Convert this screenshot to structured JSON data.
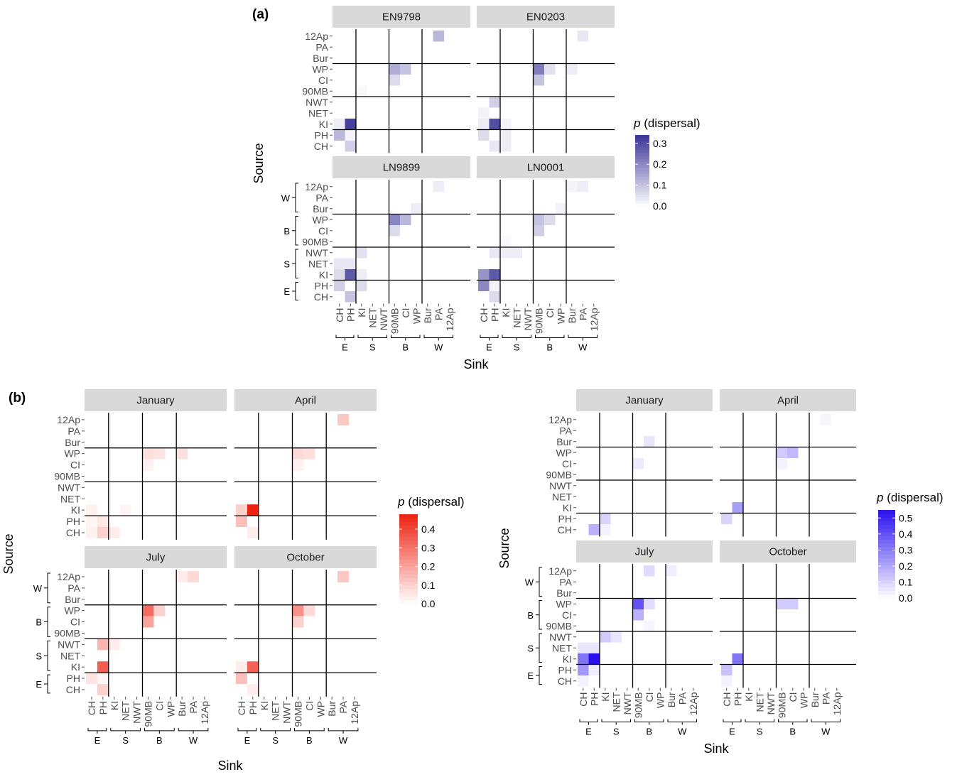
{
  "panel_labels": {
    "a": "(a)",
    "b": "(b)"
  },
  "axis_titles": {
    "x": "Sink",
    "y": "Source"
  },
  "legend_titles": {
    "italic": "p",
    "rest": " (dispersal)"
  },
  "source_labels": [
    "12Ap",
    "PA",
    "Bur",
    "WP",
    "CI",
    "90MB",
    "NWT",
    "NET",
    "KI",
    "PH",
    "CH"
  ],
  "sink_labels": [
    "CH",
    "PH",
    "KI",
    "NET",
    "NWT",
    "90MB",
    "CI",
    "WP",
    "Bur",
    "PA",
    "12Ap"
  ],
  "groups": [
    "E",
    "S",
    "B",
    "W"
  ],
  "colors": {
    "blue_a": "#3a3596",
    "red": "#ee2211",
    "violet": "#2a10ee",
    "strip": "#d9d9d9",
    "grid": "#000000"
  },
  "chart_data": [
    {
      "type": "heatmap",
      "id": "a",
      "title": "(a)",
      "xlabel": "Sink",
      "ylabel": "Source",
      "legend": {
        "title": "p (dispersal)",
        "max": 0.34,
        "ticks": [
          0.0,
          0.1,
          0.2,
          0.3
        ],
        "color": "#3a3596",
        "placement": "right"
      },
      "panels": [
        {
          "name": "EN9798",
          "cells": [
            [
              "12Ap",
              "PA",
              0.12
            ],
            [
              "WP",
              "90MB",
              0.14
            ],
            [
              "WP",
              "CI",
              0.1
            ],
            [
              "CI",
              "90MB",
              0.06
            ],
            [
              "90MB",
              "KI",
              0.01
            ],
            [
              "KI",
              "CH",
              0.03
            ],
            [
              "KI",
              "PH",
              0.32
            ],
            [
              "PH",
              "CH",
              0.12
            ],
            [
              "PH",
              "PH",
              0.02
            ],
            [
              "CH",
              "PH",
              0.08
            ]
          ]
        },
        {
          "name": "EN0203",
          "cells": [
            [
              "12Ap",
              "PA",
              0.04
            ],
            [
              "WP",
              "90MB",
              0.22
            ],
            [
              "WP",
              "CI",
              0.05
            ],
            [
              "WP",
              "Bur",
              0.03
            ],
            [
              "CI",
              "90MB",
              0.1
            ],
            [
              "NWT",
              "PH",
              0.08
            ],
            [
              "NET",
              "CH",
              0.02
            ],
            [
              "KI",
              "CH",
              0.03
            ],
            [
              "KI",
              "PH",
              0.3
            ],
            [
              "KI",
              "KI",
              0.02
            ],
            [
              "PH",
              "CH",
              0.06
            ],
            [
              "PH",
              "KI",
              0.03
            ],
            [
              "CH",
              "PH",
              0.04
            ],
            [
              "CH",
              "KI",
              0.03
            ]
          ]
        },
        {
          "name": "LN9899",
          "cells": [
            [
              "12Ap",
              "PA",
              0.03
            ],
            [
              "Bur",
              "WP",
              0.03
            ],
            [
              "WP",
              "90MB",
              0.2
            ],
            [
              "WP",
              "CI",
              0.12
            ],
            [
              "CI",
              "90MB",
              0.06
            ],
            [
              "NWT",
              "KI",
              0.05
            ],
            [
              "NET",
              "CH",
              0.04
            ],
            [
              "NET",
              "PH",
              0.04
            ],
            [
              "KI",
              "CH",
              0.06
            ],
            [
              "KI",
              "PH",
              0.28
            ],
            [
              "KI",
              "KI",
              0.03
            ],
            [
              "PH",
              "CH",
              0.08
            ],
            [
              "PH",
              "KI",
              0.06
            ],
            [
              "CH",
              "PH",
              0.1
            ]
          ]
        },
        {
          "name": "LN0001",
          "cells": [
            [
              "12Ap",
              "Bur",
              0.02
            ],
            [
              "12Ap",
              "PA",
              0.03
            ],
            [
              "Bur",
              "WP",
              0.02
            ],
            [
              "WP",
              "90MB",
              0.1
            ],
            [
              "WP",
              "CI",
              0.06
            ],
            [
              "CI",
              "90MB",
              0.08
            ],
            [
              "90MB",
              "KI",
              0.01
            ],
            [
              "NWT",
              "PH",
              0.04
            ],
            [
              "NWT",
              "KI",
              0.03
            ],
            [
              "NWT",
              "NET",
              0.03
            ],
            [
              "KI",
              "CH",
              0.18
            ],
            [
              "KI",
              "PH",
              0.28
            ],
            [
              "PH",
              "CH",
              0.2
            ],
            [
              "PH",
              "PH",
              0.02
            ],
            [
              "CH",
              "PH",
              0.06
            ]
          ]
        }
      ]
    },
    {
      "type": "heatmap",
      "id": "b-red",
      "title": "(b)",
      "xlabel": "Sink",
      "ylabel": "Source",
      "legend": {
        "title": "p (dispersal)",
        "max": 0.48,
        "ticks": [
          0.0,
          0.1,
          0.2,
          0.3,
          0.4
        ],
        "color": "#ee2211",
        "placement": "right"
      },
      "panels": [
        {
          "name": "January",
          "cells": [
            [
              "WP",
              "90MB",
              0.07
            ],
            [
              "WP",
              "CI",
              0.06
            ],
            [
              "WP",
              "Bur",
              0.07
            ],
            [
              "CI",
              "90MB",
              0.03
            ],
            [
              "KI",
              "CH",
              0.03
            ],
            [
              "KI",
              "NET",
              0.02
            ],
            [
              "PH",
              "CH",
              0.02
            ],
            [
              "PH",
              "PH",
              0.05
            ],
            [
              "CH",
              "PH",
              0.1
            ],
            [
              "CH",
              "KI",
              0.04
            ],
            [
              "CH",
              "CH",
              0.03
            ]
          ]
        },
        {
          "name": "April",
          "cells": [
            [
              "12Ap",
              "PA",
              0.12
            ],
            [
              "WP",
              "90MB",
              0.08
            ],
            [
              "WP",
              "CI",
              0.07
            ],
            [
              "CI",
              "90MB",
              0.03
            ],
            [
              "KI",
              "CH",
              0.1
            ],
            [
              "KI",
              "PH",
              0.48
            ],
            [
              "PH",
              "CH",
              0.14
            ],
            [
              "CH",
              "PH",
              0.04
            ]
          ]
        },
        {
          "name": "July",
          "cells": [
            [
              "12Ap",
              "Bur",
              0.04
            ],
            [
              "12Ap",
              "PA",
              0.08
            ],
            [
              "WP",
              "90MB",
              0.32
            ],
            [
              "WP",
              "CI",
              0.1
            ],
            [
              "CI",
              "90MB",
              0.2
            ],
            [
              "NWT",
              "PH",
              0.16
            ],
            [
              "NWT",
              "KI",
              0.04
            ],
            [
              "KI",
              "PH",
              0.35
            ],
            [
              "PH",
              "CH",
              0.06
            ],
            [
              "PH",
              "PH",
              0.02
            ],
            [
              "CH",
              "PH",
              0.1
            ]
          ]
        },
        {
          "name": "October",
          "cells": [
            [
              "12Ap",
              "PA",
              0.12
            ],
            [
              "WP",
              "90MB",
              0.24
            ],
            [
              "WP",
              "CI",
              0.08
            ],
            [
              "CI",
              "90MB",
              0.1
            ],
            [
              "KI",
              "CH",
              0.04
            ],
            [
              "KI",
              "PH",
              0.34
            ],
            [
              "PH",
              "CH",
              0.14
            ],
            [
              "CH",
              "PH",
              0.04
            ]
          ]
        }
      ]
    },
    {
      "type": "heatmap",
      "id": "b-violet",
      "xlabel": "Sink",
      "ylabel": "Source",
      "legend": {
        "title": "p (dispersal)",
        "max": 0.55,
        "ticks": [
          0.0,
          0.1,
          0.2,
          0.3,
          0.4,
          0.5
        ],
        "color": "#2a10ee",
        "placement": "right"
      },
      "panels": [
        {
          "name": "January",
          "cells": [
            [
              "Bur",
              "CI",
              0.06
            ],
            [
              "CI",
              "90MB",
              0.05
            ],
            [
              "PH",
              "KI",
              0.1
            ],
            [
              "CH",
              "PH",
              0.18
            ],
            [
              "CH",
              "KI",
              0.03
            ]
          ]
        },
        {
          "name": "April",
          "cells": [
            [
              "12Ap",
              "PA",
              0.02
            ],
            [
              "WP",
              "90MB",
              0.12
            ],
            [
              "WP",
              "CI",
              0.16
            ],
            [
              "CI",
              "90MB",
              0.03
            ],
            [
              "KI",
              "PH",
              0.22
            ],
            [
              "PH",
              "CH",
              0.1
            ]
          ]
        },
        {
          "name": "July",
          "cells": [
            [
              "12Ap",
              "Bur",
              0.04
            ],
            [
              "12Ap",
              "CI",
              0.08
            ],
            [
              "WP",
              "90MB",
              0.4
            ],
            [
              "WP",
              "CI",
              0.08
            ],
            [
              "CI",
              "90MB",
              0.18
            ],
            [
              "90MB",
              "CI",
              0.02
            ],
            [
              "NWT",
              "KI",
              0.12
            ],
            [
              "NWT",
              "NET",
              0.06
            ],
            [
              "NET",
              "CH",
              0.06
            ],
            [
              "NET",
              "PH",
              0.06
            ],
            [
              "KI",
              "CH",
              0.32
            ],
            [
              "KI",
              "PH",
              0.56
            ],
            [
              "PH",
              "CH",
              0.24
            ],
            [
              "PH",
              "PH",
              0.04
            ],
            [
              "CH",
              "CH",
              0.03
            ]
          ]
        },
        {
          "name": "October",
          "cells": [
            [
              "WP",
              "90MB",
              0.12
            ],
            [
              "WP",
              "CI",
              0.12
            ],
            [
              "KI",
              "PH",
              0.32
            ],
            [
              "PH",
              "CH",
              0.14
            ],
            [
              "CH",
              "CH",
              0.03
            ]
          ]
        }
      ]
    }
  ]
}
